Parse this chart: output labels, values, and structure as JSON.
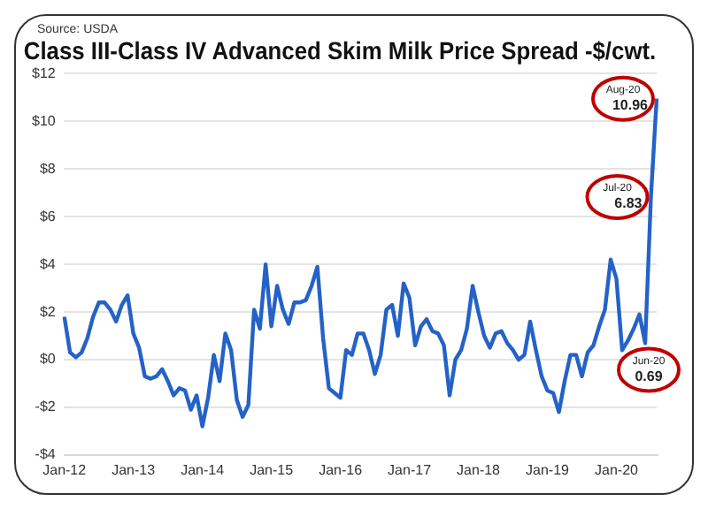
{
  "chart_data": {
    "type": "line",
    "title": "Class III-Class IV Advanced Skim Milk Price Spread -$/cwt.",
    "annotations": [
      "Source: USDA",
      {
        "text": "Jun-20",
        "y": 0.69
      },
      {
        "text": "Jul-20",
        "y": 6.83
      },
      {
        "text": "Aug-20",
        "y": 10.96
      }
    ],
    "categories": [
      "Jan-12",
      null,
      null,
      null,
      null,
      null,
      null,
      null,
      null,
      null,
      null,
      null,
      "Jan-13",
      null,
      null,
      null,
      null,
      null,
      null,
      null,
      null,
      null,
      null,
      null,
      "Jan-14",
      null,
      null,
      null,
      null,
      null,
      null,
      null,
      null,
      null,
      null,
      null,
      "Jan-15",
      null,
      null,
      null,
      null,
      null,
      null,
      null,
      null,
      null,
      null,
      null,
      "Jan-16",
      null,
      null,
      null,
      null,
      null,
      null,
      null,
      null,
      null,
      null,
      null,
      "Jan-17",
      null,
      null,
      null,
      null,
      null,
      null,
      null,
      null,
      null,
      null,
      null,
      "Jan-18",
      null,
      null,
      null,
      null,
      null,
      null,
      null,
      null,
      null,
      null,
      null,
      "Jan-19",
      null,
      null,
      null,
      null,
      null,
      null,
      null,
      null,
      null,
      null,
      null,
      "Jan-20",
      null,
      null,
      null,
      null,
      null,
      null,
      null
    ],
    "series": [
      {
        "color": "#2462c8",
        "values": [
          1.8,
          0.3,
          0.1,
          0.3,
          0.9,
          1.8,
          2.4,
          2.4,
          2.1,
          1.6,
          2.3,
          2.7,
          1.1,
          0.5,
          -0.7,
          -0.8,
          -0.7,
          -0.4,
          -0.9,
          -1.5,
          -1.2,
          -1.3,
          -2.1,
          -1.5,
          -2.8,
          -1.6,
          0.2,
          -0.9,
          1.1,
          0.4,
          -1.7,
          -2.4,
          -1.9,
          2.1,
          1.3,
          4.0,
          1.4,
          3.1,
          2.1,
          1.5,
          2.4,
          2.4,
          2.5,
          3.1,
          3.9,
          0.9,
          -1.2,
          -1.4,
          -1.6,
          0.4,
          0.2,
          1.1,
          1.1,
          0.4,
          -0.6,
          0.2,
          2.1,
          2.3,
          1.0,
          3.2,
          2.6,
          0.6,
          1.4,
          1.7,
          1.2,
          1.1,
          0.6,
          -1.5,
          0.0,
          0.4,
          1.3,
          3.1,
          2.0,
          1.0,
          0.5,
          1.1,
          1.2,
          0.7,
          0.4,
          0.0,
          0.2,
          1.6,
          0.4,
          -0.7,
          -1.3,
          -1.4,
          -2.2,
          -0.9,
          0.2,
          0.2,
          -0.7,
          0.3,
          0.6,
          1.4,
          2.1,
          4.2,
          3.4,
          0.4,
          0.8,
          1.3,
          1.9,
          0.69,
          6.83,
          10.96
        ],
        "value_labels": [
          null,
          null,
          null,
          null,
          null,
          null,
          null,
          null,
          null,
          null,
          null,
          null,
          null,
          null,
          null,
          null,
          null,
          null,
          null,
          null,
          null,
          null,
          null,
          null,
          null,
          null,
          null,
          null,
          null,
          null,
          null,
          null,
          null,
          null,
          null,
          null,
          null,
          null,
          null,
          null,
          null,
          null,
          null,
          null,
          null,
          null,
          null,
          null,
          null,
          null,
          null,
          null,
          null,
          null,
          null,
          null,
          null,
          null,
          null,
          null,
          null,
          null,
          null,
          null,
          null,
          null,
          null,
          null,
          null,
          null,
          null,
          null,
          null,
          null,
          null,
          null,
          null,
          null,
          null,
          null,
          null,
          null,
          null,
          null,
          null,
          null,
          null,
          null,
          null,
          null,
          null,
          null,
          null,
          null,
          null,
          null,
          null,
          null,
          null,
          null,
          null,
          "0.69",
          "6.83",
          "10.96"
        ]
      }
    ],
    "ylim": [
      -4,
      12
    ],
    "yticks": [
      {
        "value": -4,
        "label": "-$4"
      },
      {
        "value": -2,
        "label": "-$2"
      },
      {
        "value": 0,
        "label": "$0"
      },
      {
        "value": 2,
        "label": "$2"
      },
      {
        "value": 4,
        "label": "$4"
      },
      {
        "value": 6,
        "label": "$6"
      },
      {
        "value": 8,
        "label": "$8"
      },
      {
        "value": 10,
        "label": "$10"
      },
      {
        "value": 12,
        "label": "$12"
      }
    ],
    "grid": "y",
    "legend": false,
    "marker": "none",
    "line_style": "solid"
  }
}
